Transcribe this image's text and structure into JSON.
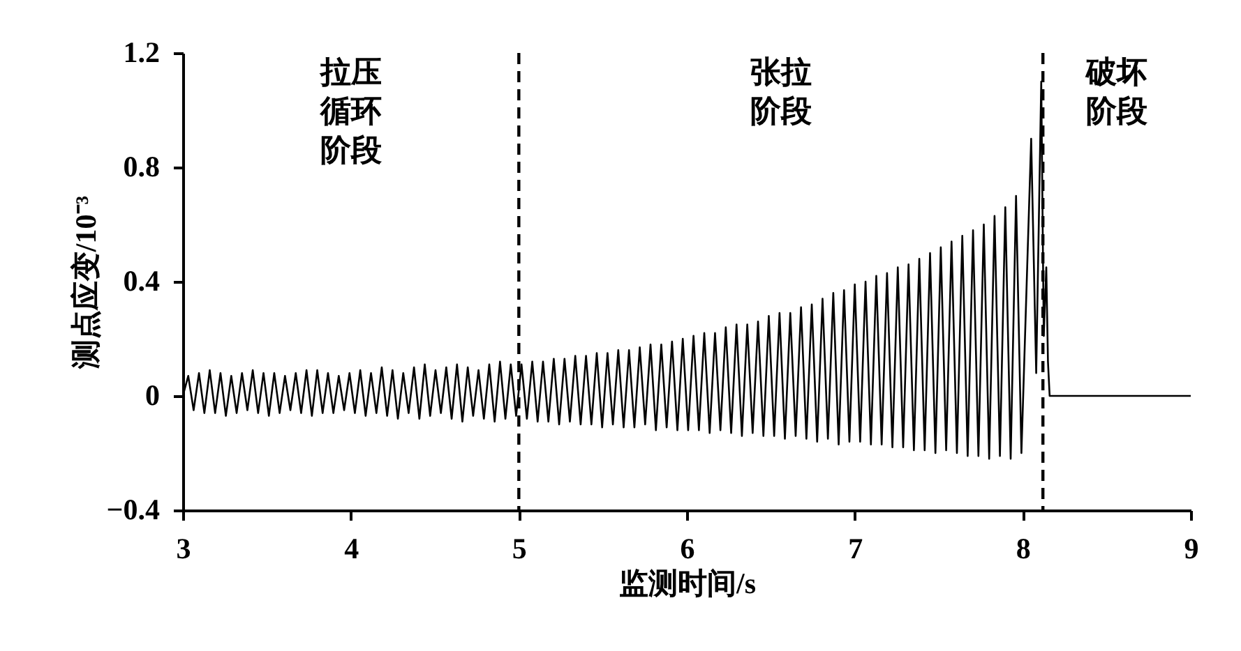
{
  "chart_data": {
    "type": "line",
    "xlabel": "监测时间/s",
    "ylabel": "测点应变/10⁻³",
    "xlim": [
      3,
      9
    ],
    "xticks": [
      3,
      4,
      5,
      6,
      7,
      8,
      9
    ],
    "ylim": [
      -0.4,
      1.2
    ],
    "yticks": [
      {
        "value": -0.4,
        "label": "−0.4"
      },
      0,
      0.4,
      0.8,
      1.2
    ],
    "grid": false,
    "line_style": "solid",
    "ref_lines": [
      {
        "axis": "x",
        "value": 5,
        "color": "#000000",
        "line_style": "dashed"
      },
      {
        "axis": "x",
        "value": 8.12,
        "color": "#000000",
        "line_style": "dashed"
      }
    ],
    "annotations": [
      "拉压循环阶段",
      "张拉阶段",
      "破坏阶段"
    ],
    "x": [
      3,
      3.032,
      3.064,
      3.096,
      3.128,
      3.16,
      3.192,
      3.224,
      3.256,
      3.288,
      3.32,
      3.352,
      3.384,
      3.416,
      3.448,
      3.48,
      3.512,
      3.544,
      3.576,
      3.608,
      3.64,
      3.672,
      3.704,
      3.736,
      3.768,
      3.8,
      3.832,
      3.864,
      3.896,
      3.928,
      3.96,
      3.992,
      4.024,
      4.056,
      4.088,
      4.12,
      4.152,
      4.184,
      4.216,
      4.248,
      4.28,
      4.312,
      4.344,
      4.376,
      4.408,
      4.44,
      4.472,
      4.504,
      4.536,
      4.568,
      4.6,
      4.632,
      4.664,
      4.696,
      4.728,
      4.76,
      4.792,
      4.824,
      4.856,
      4.888,
      4.92,
      4.952,
      4.984,
      5.016,
      5.048,
      5.08,
      5.112,
      5.144,
      5.176,
      5.208,
      5.24,
      5.272,
      5.304,
      5.336,
      5.368,
      5.4,
      5.432,
      5.464,
      5.496,
      5.528,
      5.56,
      5.592,
      5.624,
      5.656,
      5.688,
      5.72,
      5.752,
      5.784,
      5.816,
      5.848,
      5.88,
      5.912,
      5.944,
      5.976,
      6.008,
      6.04,
      6.072,
      6.104,
      6.136,
      6.168,
      6.2,
      6.232,
      6.264,
      6.296,
      6.328,
      6.36,
      6.392,
      6.424,
      6.456,
      6.488,
      6.52,
      6.552,
      6.584,
      6.616,
      6.648,
      6.68,
      6.712,
      6.744,
      6.776,
      6.808,
      6.84,
      6.872,
      6.904,
      6.936,
      6.968,
      7,
      7.032,
      7.064,
      7.096,
      7.128,
      7.16,
      7.192,
      7.224,
      7.256,
      7.288,
      7.32,
      7.352,
      7.384,
      7.416,
      7.448,
      7.48,
      7.512,
      7.544,
      7.576,
      7.608,
      7.64,
      7.672,
      7.704,
      7.736,
      7.768,
      7.8,
      7.832,
      7.864,
      7.896,
      7.928,
      7.96,
      7.992,
      8.05,
      8.08,
      8.11,
      8.125,
      8.14,
      8.15,
      8.16,
      9
    ],
    "series": [
      {
        "color": "#000000",
        "values": [
          0,
          0.07,
          -0.05,
          0.08,
          -0.06,
          0.09,
          -0.06,
          0.08,
          -0.07,
          0.07,
          -0.06,
          0.08,
          -0.05,
          0.09,
          -0.06,
          0.08,
          -0.07,
          0.08,
          -0.06,
          0.07,
          -0.05,
          0.08,
          -0.06,
          0.09,
          -0.07,
          0.09,
          -0.06,
          0.08,
          -0.06,
          0.07,
          -0.05,
          0.08,
          -0.06,
          0.09,
          -0.07,
          0.08,
          -0.06,
          0.1,
          -0.07,
          0.09,
          -0.08,
          0.08,
          -0.06,
          0.1,
          -0.08,
          0.11,
          -0.07,
          0.09,
          -0.06,
          0.1,
          -0.08,
          0.11,
          -0.09,
          0.1,
          -0.07,
          0.09,
          -0.08,
          0.11,
          -0.09,
          0.12,
          -0.08,
          0.11,
          -0.07,
          0.11,
          -0.08,
          0.12,
          -0.09,
          0.12,
          -0.09,
          0.13,
          -0.1,
          0.13,
          -0.09,
          0.14,
          -0.1,
          0.14,
          -0.1,
          0.15,
          -0.11,
          0.15,
          -0.1,
          0.16,
          -0.11,
          0.16,
          -0.11,
          0.17,
          -0.1,
          0.18,
          -0.12,
          0.18,
          -0.11,
          0.19,
          -0.12,
          0.2,
          -0.12,
          0.21,
          -0.12,
          0.22,
          -0.13,
          0.22,
          -0.12,
          0.24,
          -0.13,
          0.25,
          -0.14,
          0.25,
          -0.13,
          0.26,
          -0.14,
          0.28,
          -0.14,
          0.29,
          -0.15,
          0.29,
          -0.14,
          0.31,
          -0.15,
          0.32,
          -0.16,
          0.34,
          -0.15,
          0.36,
          -0.17,
          0.37,
          -0.16,
          0.39,
          -0.16,
          0.4,
          -0.17,
          0.42,
          -0.17,
          0.43,
          -0.18,
          0.45,
          -0.18,
          0.46,
          -0.19,
          0.48,
          -0.19,
          0.5,
          -0.2,
          0.52,
          -0.19,
          0.54,
          -0.2,
          0.56,
          -0.21,
          0.58,
          -0.21,
          0.6,
          -0.22,
          0.63,
          -0.21,
          0.66,
          -0.22,
          0.7,
          -0.2,
          0.9,
          0.08,
          1.1,
          0.21,
          0.45,
          0.12,
          0,
          0
        ]
      }
    ]
  }
}
